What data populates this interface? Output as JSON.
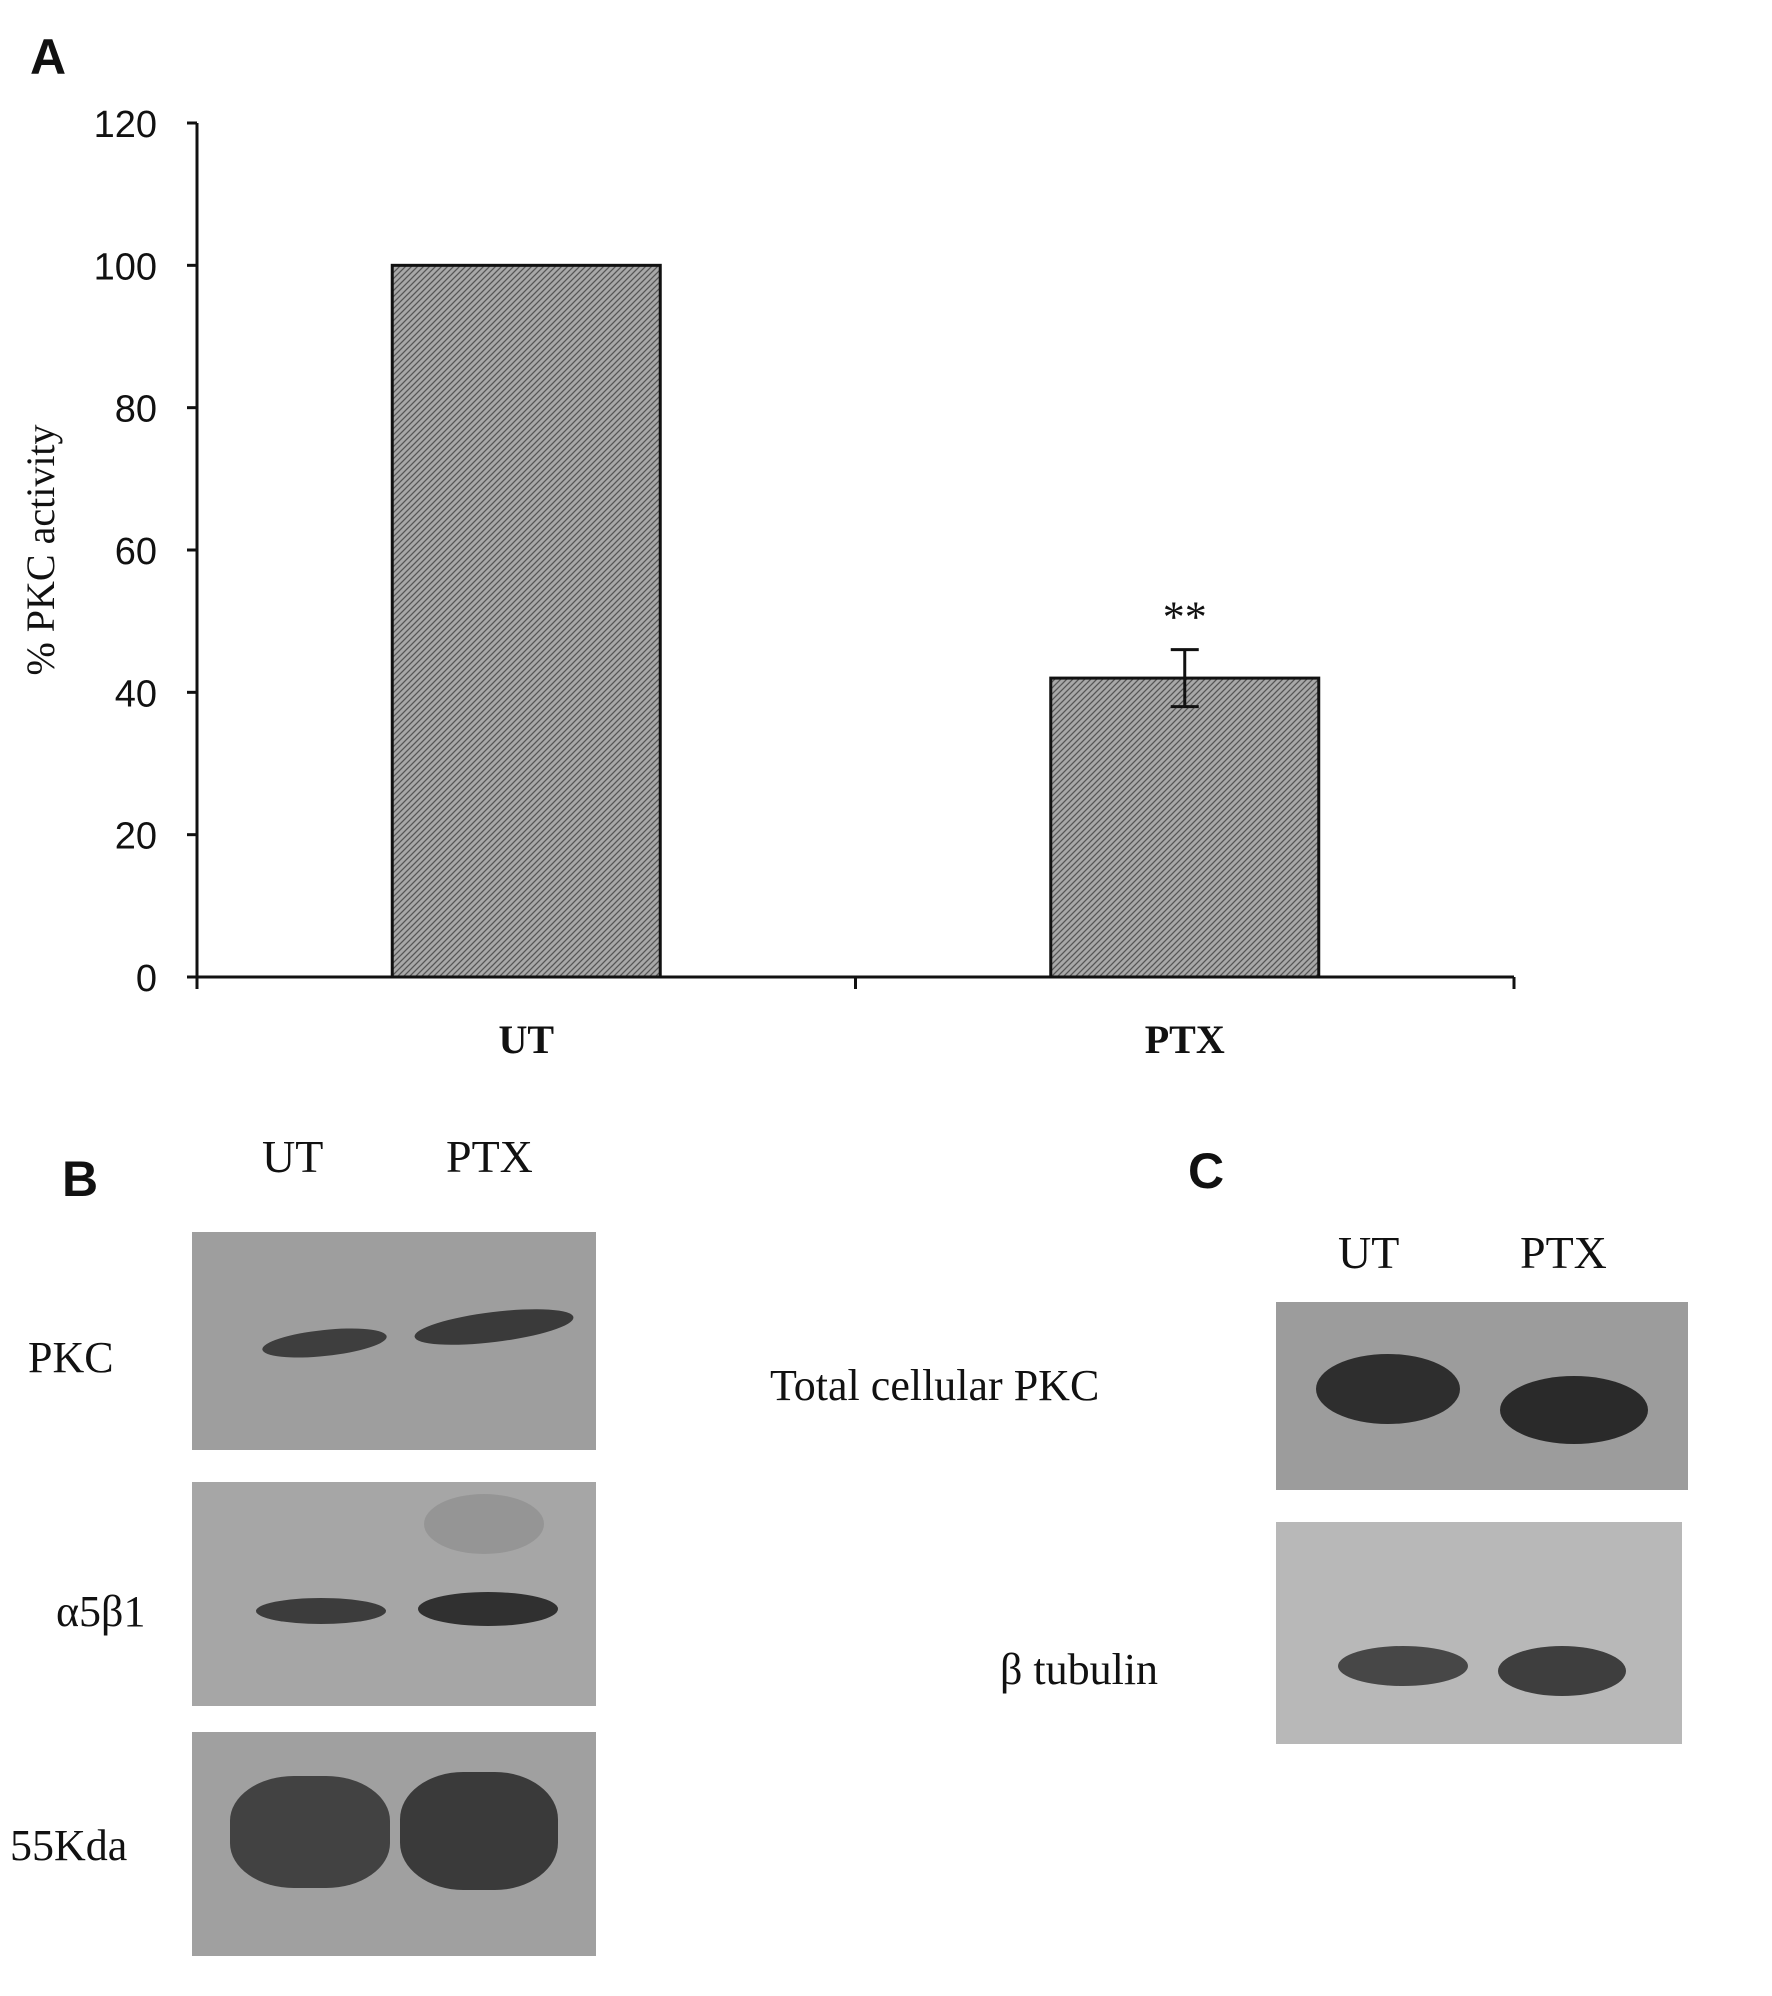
{
  "panel_a": {
    "letter": "A"
  },
  "panel_b": {
    "letter": "B",
    "lanes": [
      "UT",
      "PTX"
    ],
    "rows": [
      "PKC",
      "α5β1",
      "55Kda"
    ]
  },
  "panel_c": {
    "letter": "C",
    "lanes": [
      "UT",
      "PTX"
    ],
    "rows": [
      "Total cellular PKC",
      "β tubulin"
    ]
  },
  "colors": {
    "bar_fill": "#9a9a9a",
    "bar_stroke": "#111111",
    "blot_bg": "#b5b5b5",
    "band": "#3a3a3a"
  },
  "chart_data": {
    "type": "bar",
    "categories": [
      "UT",
      "PTX"
    ],
    "values": [
      100,
      42
    ],
    "error": [
      null,
      4
    ],
    "annotations": [
      {
        "category": "PTX",
        "text": "**"
      }
    ],
    "ylabel": "% PKC activity",
    "ylim": [
      0,
      120
    ],
    "yticks": [
      0,
      20,
      40,
      60,
      80,
      100,
      120
    ],
    "grid": false,
    "pattern": "hatched"
  }
}
